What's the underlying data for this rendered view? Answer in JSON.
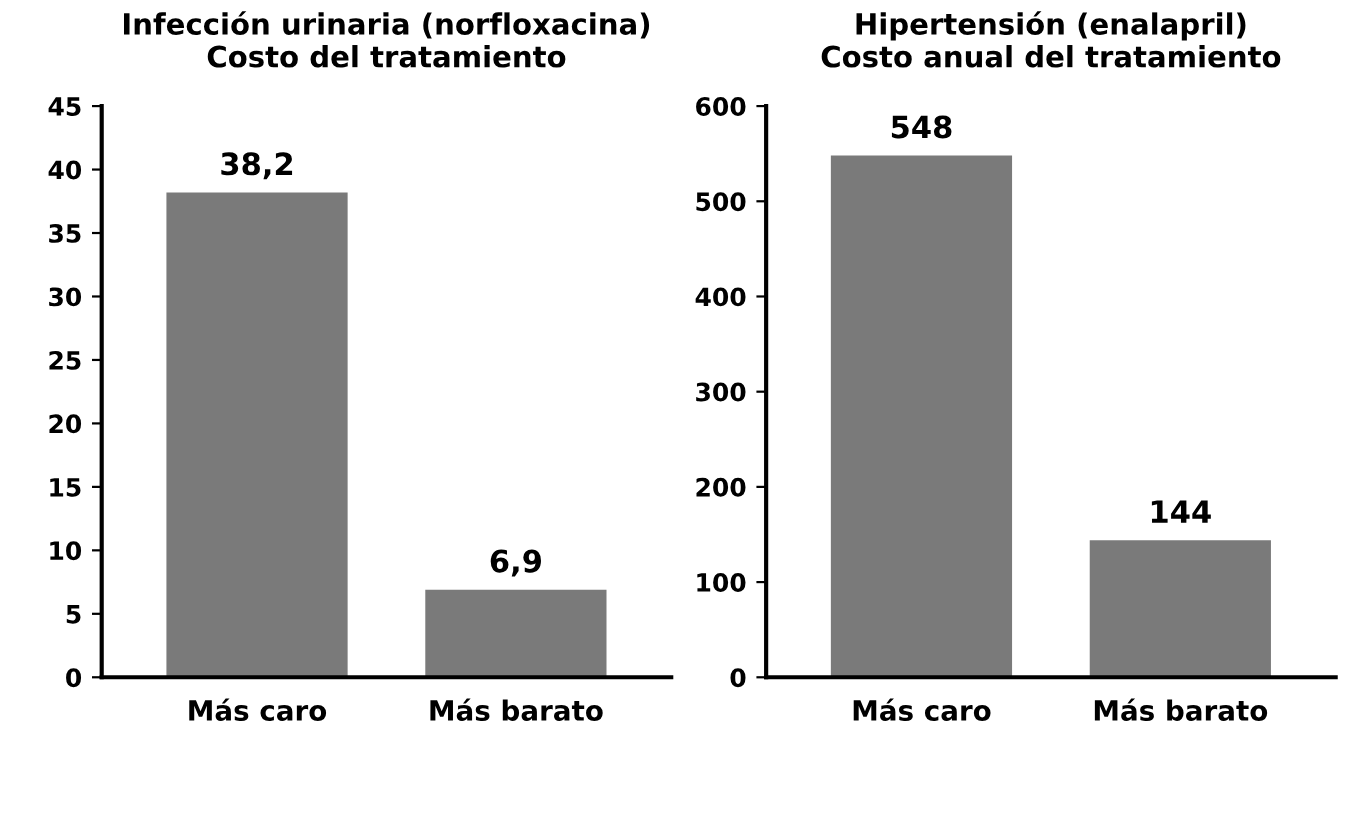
{
  "chart_data": [
    {
      "type": "bar",
      "title": "Infección urinaria (norfloxacina)\nCosto del tratamiento",
      "categories": [
        "Más caro",
        "Más barato"
      ],
      "values": [
        38.2,
        6.9
      ],
      "value_labels": [
        "38,2",
        "6,9"
      ],
      "color": "#7a7a7a",
      "ylim": [
        0,
        45
      ],
      "yticks": [
        0,
        5,
        10,
        15,
        20,
        25,
        30,
        35,
        40,
        45
      ],
      "grid": false
    },
    {
      "type": "bar",
      "title": "Hipertensión (enalapril)\nCosto anual del tratamiento",
      "categories": [
        "Más caro",
        "Más barato"
      ],
      "values": [
        548,
        144
      ],
      "value_labels": [
        "548",
        "144"
      ],
      "color": "#7a7a7a",
      "ylim": [
        0,
        600
      ],
      "yticks": [
        0,
        100,
        200,
        300,
        400,
        500,
        600
      ],
      "grid": false
    }
  ]
}
